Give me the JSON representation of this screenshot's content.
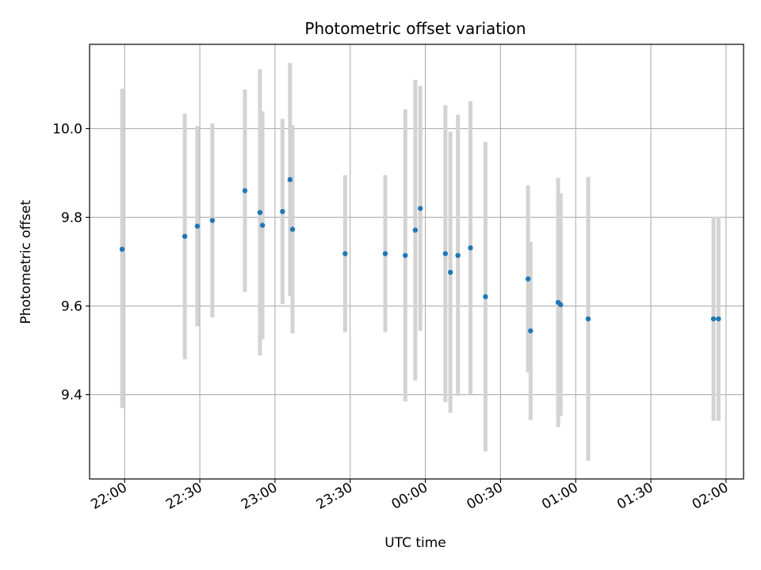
{
  "chart_data": {
    "type": "scatter",
    "title": "Photometric offset variation",
    "xlabel": "UTC time",
    "ylabel": "Photometric offset",
    "x_unit": "UTC time (HH:MM)",
    "xlim": [
      "21:46",
      "02:07"
    ],
    "ylim": [
      9.21,
      10.19
    ],
    "xticks": [
      "22:00",
      "22:30",
      "23:00",
      "23:30",
      "00:00",
      "00:30",
      "01:00",
      "01:30",
      "02:00"
    ],
    "yticks": [
      9.4,
      9.6,
      9.8,
      10.0
    ],
    "ytick_labels": [
      "9.4",
      "9.6",
      "9.8",
      "10.0"
    ],
    "grid": true,
    "legend": "none",
    "colors": {
      "points": "#1f77b4",
      "error_bars": "#d3d3d3",
      "grid": "#b0b0b0"
    },
    "points": [
      {
        "x": "21:59",
        "y": 9.728,
        "ylo": 9.37,
        "yhi": 10.09
      },
      {
        "x": "22:24",
        "y": 9.757,
        "ylo": 9.48,
        "yhi": 10.034
      },
      {
        "x": "22:29",
        "y": 9.78,
        "ylo": 9.554,
        "yhi": 10.006
      },
      {
        "x": "22:35",
        "y": 9.793,
        "ylo": 9.574,
        "yhi": 10.012
      },
      {
        "x": "22:48",
        "y": 9.86,
        "ylo": 9.632,
        "yhi": 10.088
      },
      {
        "x": "22:54",
        "y": 9.811,
        "ylo": 9.488,
        "yhi": 10.134
      },
      {
        "x": "22:55",
        "y": 9.782,
        "ylo": 9.525,
        "yhi": 10.039
      },
      {
        "x": "23:03",
        "y": 9.813,
        "ylo": 9.604,
        "yhi": 10.022
      },
      {
        "x": "23:06",
        "y": 9.885,
        "ylo": 9.622,
        "yhi": 10.148
      },
      {
        "x": "23:07",
        "y": 9.773,
        "ylo": 9.538,
        "yhi": 10.008
      },
      {
        "x": "23:28",
        "y": 9.718,
        "ylo": 9.541,
        "yhi": 9.895
      },
      {
        "x": "23:44",
        "y": 9.718,
        "ylo": 9.541,
        "yhi": 9.895
      },
      {
        "x": "23:52",
        "y": 9.714,
        "ylo": 9.385,
        "yhi": 10.043
      },
      {
        "x": "23:56",
        "y": 9.771,
        "ylo": 9.432,
        "yhi": 10.11
      },
      {
        "x": "23:58",
        "y": 9.82,
        "ylo": 9.544,
        "yhi": 10.096
      },
      {
        "x": "00:08",
        "y": 9.718,
        "ylo": 9.383,
        "yhi": 10.053
      },
      {
        "x": "00:10",
        "y": 9.676,
        "ylo": 9.359,
        "yhi": 9.993
      },
      {
        "x": "00:13",
        "y": 9.714,
        "ylo": 9.397,
        "yhi": 10.031
      },
      {
        "x": "00:18",
        "y": 9.731,
        "ylo": 9.4,
        "yhi": 10.062
      },
      {
        "x": "00:24",
        "y": 9.621,
        "ylo": 9.272,
        "yhi": 9.97
      },
      {
        "x": "00:41",
        "y": 9.661,
        "ylo": 9.45,
        "yhi": 9.872
      },
      {
        "x": "00:42",
        "y": 9.544,
        "ylo": 9.343,
        "yhi": 9.745
      },
      {
        "x": "00:53",
        "y": 9.608,
        "ylo": 9.327,
        "yhi": 9.889
      },
      {
        "x": "00:54",
        "y": 9.603,
        "ylo": 9.352,
        "yhi": 9.854
      },
      {
        "x": "01:05",
        "y": 9.571,
        "ylo": 9.251,
        "yhi": 9.891
      },
      {
        "x": "01:55",
        "y": 9.571,
        "ylo": 9.341,
        "yhi": 9.801
      },
      {
        "x": "01:57",
        "y": 9.571,
        "ylo": 9.341,
        "yhi": 9.801
      }
    ]
  }
}
